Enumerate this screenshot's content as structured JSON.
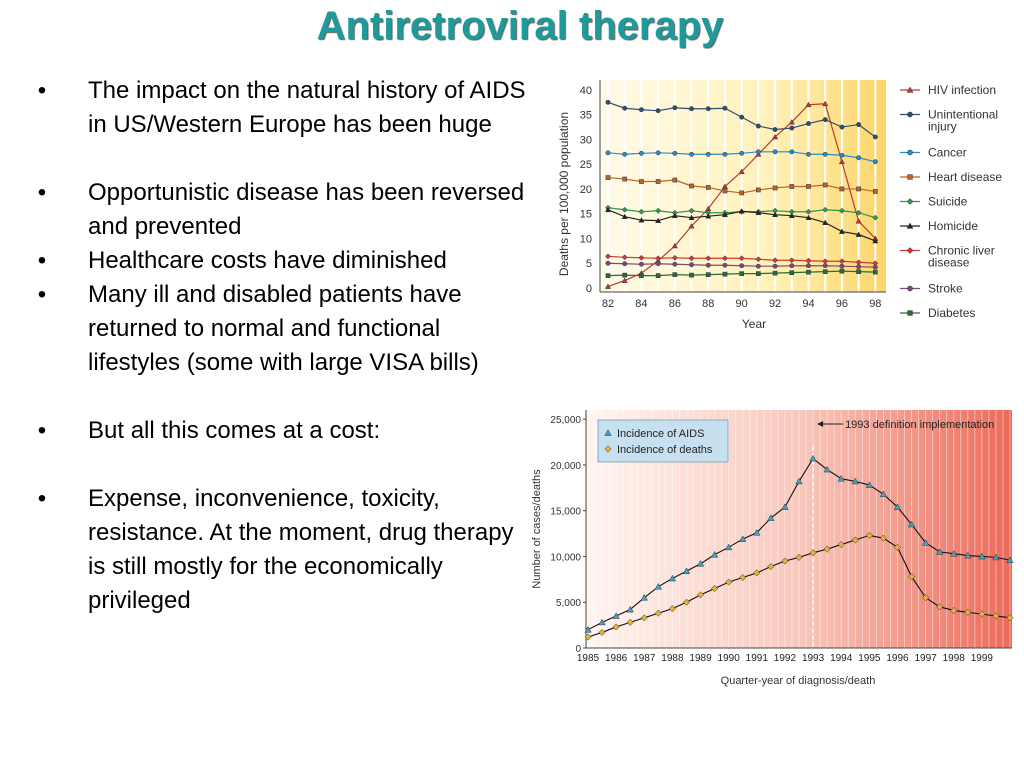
{
  "slide": {
    "title": "Antiretroviral therapy",
    "bullets": [
      "The impact on the natural history of AIDS in US/Western Europe has been huge",
      "Opportunistic disease has been reversed and prevented",
      "Healthcare costs have diminished",
      "Many ill and disabled patients have returned to normal and functional lifestyles (some with large VISA bills)",
      "But all this comes at a cost:",
      "Expense, inconvenience, toxicity, resistance.  At the moment, drug therapy is still mostly for the economically privileged"
    ]
  },
  "chart_data": [
    {
      "type": "line",
      "xlabel": "Year",
      "ylabel": "Deaths per 100,000 population",
      "x": [
        82,
        83,
        84,
        85,
        86,
        87,
        88,
        89,
        90,
        91,
        92,
        93,
        94,
        95,
        96,
        97,
        98
      ],
      "x_tick_labels": [
        "82",
        "84",
        "86",
        "88",
        "90",
        "92",
        "94",
        "96",
        "98"
      ],
      "x_ticks": [
        82,
        84,
        86,
        88,
        90,
        92,
        94,
        96,
        98
      ],
      "y_ticks": [
        0,
        5,
        10,
        15,
        20,
        25,
        30,
        35,
        40
      ],
      "xlim": [
        82,
        98.4
      ],
      "ylim": [
        0,
        42
      ],
      "legend_position": "right",
      "series": [
        {
          "name": "HIV infection",
          "marker": "triangle",
          "color": "#c0392b",
          "values": [
            0.3,
            1.5,
            3,
            5.5,
            8.5,
            12.5,
            16,
            20.5,
            23.5,
            27,
            30.5,
            33.5,
            37,
            37.2,
            25.5,
            13.5,
            10
          ]
        },
        {
          "name": "Unintentional injury",
          "marker": "circle",
          "color": "#2f4f6f",
          "values": [
            37.5,
            36.3,
            36,
            35.8,
            36.4,
            36.2,
            36.2,
            36.3,
            34.5,
            32.7,
            32,
            32.3,
            33.2,
            34,
            32.5,
            33,
            30.5
          ]
        },
        {
          "name": "Cancer",
          "marker": "circle",
          "color": "#2a8cc4",
          "values": [
            27.3,
            27,
            27.2,
            27.3,
            27.2,
            27,
            27,
            27,
            27.2,
            27.5,
            27.5,
            27.5,
            27,
            27,
            26.8,
            26.3,
            25.5
          ]
        },
        {
          "name": "Heart disease",
          "marker": "square",
          "color": "#b7652b",
          "values": [
            22.3,
            22,
            21.5,
            21.5,
            21.8,
            20.6,
            20.3,
            19.6,
            19.2,
            19.8,
            20.2,
            20.5,
            20.5,
            20.8,
            20,
            20,
            19.5
          ]
        },
        {
          "name": "Suicide",
          "marker": "diamond",
          "color": "#2e9a4a",
          "values": [
            16.2,
            15.8,
            15.4,
            15.6,
            15.2,
            15.6,
            15.2,
            15.2,
            15.4,
            15.4,
            15.6,
            15.4,
            15.4,
            15.8,
            15.6,
            15.2,
            14.2
          ]
        },
        {
          "name": "Homicide",
          "marker": "triangle",
          "color": "#222222",
          "values": [
            15.8,
            14.4,
            13.7,
            13.6,
            14.6,
            14.2,
            14.5,
            14.8,
            15.5,
            15.2,
            14.8,
            14.6,
            14.2,
            13.2,
            11.4,
            10.8,
            9.5
          ]
        },
        {
          "name": "Chronic liver disease",
          "marker": "diamond",
          "color": "#d03a3a",
          "values": [
            6.4,
            6.2,
            6.1,
            6,
            6.1,
            6,
            6,
            6,
            6,
            5.8,
            5.6,
            5.6,
            5.5,
            5.4,
            5.4,
            5.2,
            5
          ]
        },
        {
          "name": "Stroke",
          "marker": "circle",
          "color": "#7a4a7a",
          "values": [
            5,
            4.9,
            4.8,
            4.9,
            4.8,
            4.7,
            4.6,
            4.6,
            4.5,
            4.4,
            4.4,
            4.5,
            4.5,
            4.5,
            4.4,
            4.3,
            4.2
          ]
        },
        {
          "name": "Diabetes",
          "marker": "square",
          "color": "#2a6b3a",
          "values": [
            2.5,
            2.6,
            2.5,
            2.5,
            2.7,
            2.6,
            2.7,
            2.8,
            2.9,
            2.9,
            3,
            3.1,
            3.2,
            3.3,
            3.4,
            3.3,
            3.2
          ]
        }
      ]
    },
    {
      "type": "line",
      "xlabel": "Quarter-year of diagnosis/death",
      "ylabel": "Number of cases/deaths",
      "x_tick_labels": [
        "1985",
        "1986",
        "1987",
        "1988",
        "1989",
        "1990",
        "1991",
        "1992",
        "1993",
        "1994",
        "1995",
        "1996",
        "1997",
        "1998",
        "1999"
      ],
      "x_ticks": [
        1985,
        1986,
        1987,
        1988,
        1989,
        1990,
        1991,
        1992,
        1993,
        1994,
        1995,
        1996,
        1997,
        1998,
        1999
      ],
      "y_tick_labels": [
        "0",
        "5,000",
        "10,000",
        "15,000",
        "20,000",
        "25,000"
      ],
      "y_ticks": [
        0,
        5000,
        10000,
        15000,
        20000,
        25000
      ],
      "xlim": [
        1985,
        2000
      ],
      "ylim": [
        0,
        26000
      ],
      "legend_position": "top-left",
      "annotation": "1993 definition implementation",
      "annotation_x": 1993,
      "series": [
        {
          "name": "Incidence of AIDS",
          "marker": "triangle",
          "color": "#3fa3c8",
          "x": [
            1985,
            1985.5,
            1986,
            1986.5,
            1987,
            1987.5,
            1988,
            1988.5,
            1989,
            1989.5,
            1990,
            1990.5,
            1991,
            1991.5,
            1992,
            1992.5,
            1993,
            1993.5,
            1994,
            1994.5,
            1995,
            1995.5,
            1996,
            1996.5,
            1997,
            1997.5,
            1998,
            1998.5,
            1999,
            1999.5,
            2000
          ],
          "values": [
            2000,
            2800,
            3500,
            4200,
            5500,
            6700,
            7600,
            8400,
            9200,
            10200,
            11000,
            11900,
            12600,
            14200,
            15400,
            18200,
            20700,
            19500,
            18500,
            18200,
            17800,
            16800,
            15400,
            13500,
            11500,
            10500,
            10300,
            10100,
            10000,
            9900,
            9600
          ]
        },
        {
          "name": "Incidence of deaths",
          "marker": "diamond",
          "color": "#e3b23c",
          "x": [
            1985,
            1985.5,
            1986,
            1986.5,
            1987,
            1987.5,
            1988,
            1988.5,
            1989,
            1989.5,
            1990,
            1990.5,
            1991,
            1991.5,
            1992,
            1992.5,
            1993,
            1993.5,
            1994,
            1994.5,
            1995,
            1995.5,
            1996,
            1996.5,
            1997,
            1997.5,
            1998,
            1998.5,
            1999,
            1999.5,
            2000
          ],
          "values": [
            1200,
            1700,
            2300,
            2800,
            3300,
            3800,
            4300,
            5000,
            5800,
            6500,
            7200,
            7700,
            8200,
            8900,
            9500,
            9900,
            10400,
            10800,
            11300,
            11800,
            12300,
            12000,
            11000,
            7800,
            5500,
            4500,
            4100,
            3900,
            3700,
            3500,
            3300
          ]
        }
      ]
    }
  ]
}
